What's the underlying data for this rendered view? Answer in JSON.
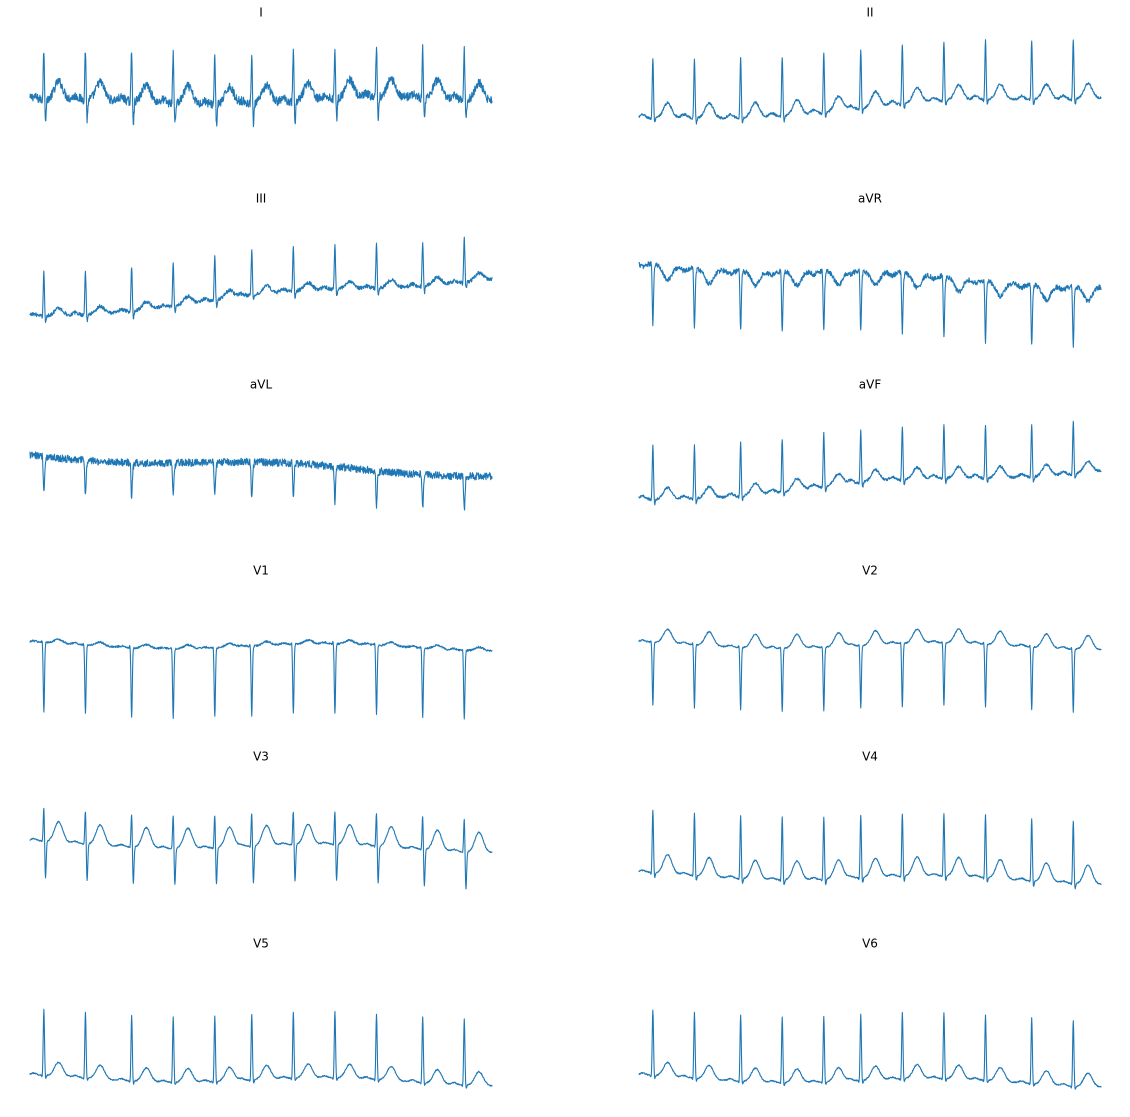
{
  "chart_data": {
    "type": "line",
    "layout": "6 rows x 2 columns, no axes, no grid",
    "trace_color": "#1f77b4",
    "leads": [
      {
        "name": "I",
        "r_peaks": [
          0.03,
          0.12,
          0.22,
          0.31,
          0.4,
          0.48,
          0.57,
          0.66,
          0.75,
          0.85,
          0.94
        ],
        "qrs_amp": 0.8,
        "s_depth": 0.35,
        "t_amp": 0.28,
        "p_amp": 0.05,
        "noise": 0.07,
        "baseline_start": 0.0,
        "baseline_end": 0.05
      },
      {
        "name": "II",
        "r_peaks": [
          0.03,
          0.12,
          0.22,
          0.31,
          0.4,
          0.48,
          0.57,
          0.66,
          0.75,
          0.85,
          0.94
        ],
        "qrs_amp": 0.95,
        "s_depth": 0.1,
        "t_amp": 0.24,
        "p_amp": 0.06,
        "noise": 0.02,
        "baseline_start": -0.3,
        "baseline_end": 0.12
      },
      {
        "name": "III",
        "r_peaks": [
          0.03,
          0.12,
          0.22,
          0.31,
          0.4,
          0.48,
          0.57,
          0.66,
          0.75,
          0.85,
          0.94
        ],
        "qrs_amp": 0.7,
        "s_depth": 0.12,
        "t_amp": 0.12,
        "p_amp": 0.04,
        "noise": 0.03,
        "baseline_start": -0.45,
        "baseline_end": 0.18
      },
      {
        "name": "aVR",
        "r_peaks": [
          0.03,
          0.12,
          0.22,
          0.31,
          0.4,
          0.48,
          0.57,
          0.66,
          0.75,
          0.85,
          0.94
        ],
        "qrs_amp": -0.95,
        "s_depth": 0.05,
        "t_amp": -0.22,
        "p_amp": -0.05,
        "noise": 0.04,
        "baseline_start": 0.4,
        "baseline_end": 0.05
      },
      {
        "name": "aVL",
        "r_peaks": [
          0.03,
          0.12,
          0.22,
          0.31,
          0.4,
          0.48,
          0.57,
          0.66,
          0.75,
          0.85,
          0.94
        ],
        "qrs_amp": -0.55,
        "s_depth": 0.05,
        "t_amp": 0.0,
        "p_amp": 0.0,
        "noise": 0.06,
        "baseline_start": 0.3,
        "baseline_end": 0.0
      },
      {
        "name": "aVF",
        "r_peaks": [
          0.03,
          0.12,
          0.22,
          0.31,
          0.4,
          0.48,
          0.57,
          0.66,
          0.75,
          0.85,
          0.94
        ],
        "qrs_amp": 0.85,
        "s_depth": 0.1,
        "t_amp": 0.18,
        "p_amp": 0.05,
        "noise": 0.02,
        "baseline_start": -0.4,
        "baseline_end": 0.08
      },
      {
        "name": "V1",
        "r_peaks": [
          0.03,
          0.12,
          0.22,
          0.31,
          0.4,
          0.48,
          0.57,
          0.66,
          0.75,
          0.85,
          0.94
        ],
        "qrs_amp": -1.1,
        "s_depth": 0.0,
        "t_amp": 0.06,
        "p_amp": 0.02,
        "noise": 0.015,
        "baseline_start": 0.25,
        "baseline_end": 0.2
      },
      {
        "name": "V2",
        "r_peaks": [
          0.03,
          0.12,
          0.22,
          0.31,
          0.4,
          0.48,
          0.57,
          0.66,
          0.75,
          0.85,
          0.94
        ],
        "qrs_amp": -1.0,
        "s_depth": 0.0,
        "t_amp": 0.22,
        "p_amp": 0.03,
        "noise": 0.01,
        "baseline_start": 0.25,
        "baseline_end": 0.22
      },
      {
        "name": "V3",
        "r_peaks": [
          0.03,
          0.12,
          0.22,
          0.31,
          0.4,
          0.48,
          0.57,
          0.66,
          0.75,
          0.85,
          0.94
        ],
        "qrs_amp": 0.55,
        "s_depth": 0.6,
        "t_amp": 0.32,
        "p_amp": 0.03,
        "noise": 0.01,
        "baseline_start": 0.05,
        "baseline_end": -0.05
      },
      {
        "name": "V4",
        "r_peaks": [
          0.03,
          0.12,
          0.22,
          0.31,
          0.4,
          0.48,
          0.57,
          0.66,
          0.75,
          0.85,
          0.94
        ],
        "qrs_amp": 1.0,
        "s_depth": 0.1,
        "t_amp": 0.3,
        "p_amp": 0.03,
        "noise": 0.01,
        "baseline_start": -0.45,
        "baseline_end": -0.55
      },
      {
        "name": "V5",
        "r_peaks": [
          0.03,
          0.12,
          0.22,
          0.31,
          0.4,
          0.48,
          0.57,
          0.66,
          0.75,
          0.85,
          0.94
        ],
        "qrs_amp": 1.05,
        "s_depth": 0.06,
        "t_amp": 0.22,
        "p_amp": 0.03,
        "noise": 0.01,
        "baseline_start": -0.7,
        "baseline_end": -0.78
      },
      {
        "name": "V6",
        "r_peaks": [
          0.03,
          0.12,
          0.22,
          0.31,
          0.4,
          0.48,
          0.57,
          0.66,
          0.75,
          0.85,
          0.94
        ],
        "qrs_amp": 1.05,
        "s_depth": 0.06,
        "t_amp": 0.22,
        "p_amp": 0.03,
        "noise": 0.01,
        "baseline_start": -0.7,
        "baseline_end": -0.8
      }
    ]
  }
}
